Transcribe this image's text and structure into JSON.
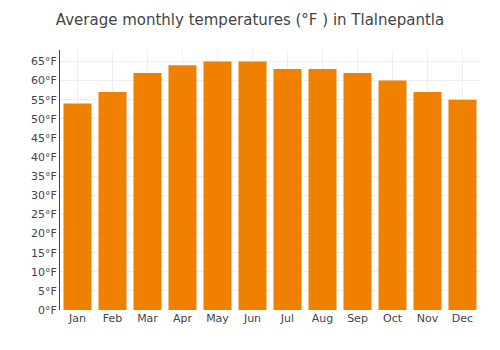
{
  "chart_data": {
    "type": "bar",
    "title": "Average monthly temperatures (°F ) in Tlalnepantla",
    "categories": [
      "Jan",
      "Feb",
      "Mar",
      "Apr",
      "May",
      "Jun",
      "Jul",
      "Aug",
      "Sep",
      "Oct",
      "Nov",
      "Dec"
    ],
    "values": [
      54,
      57,
      62,
      64,
      65,
      65,
      63,
      63,
      62,
      60,
      57,
      55
    ],
    "color": "#F08000",
    "ylim": [
      0,
      68
    ],
    "yticks": [
      {
        "value": 0,
        "label": "0°F"
      },
      {
        "value": 5,
        "label": "5°F"
      },
      {
        "value": 10,
        "label": "10°F"
      },
      {
        "value": 15,
        "label": "15°F"
      },
      {
        "value": 20,
        "label": "20°F"
      },
      {
        "value": 25,
        "label": "25°F"
      },
      {
        "value": 30,
        "label": "30°F"
      },
      {
        "value": 35,
        "label": "35°F"
      },
      {
        "value": 40,
        "label": "40°F"
      },
      {
        "value": 45,
        "label": "45°F"
      },
      {
        "value": 50,
        "label": "50°F"
      },
      {
        "value": 55,
        "label": "55°F"
      },
      {
        "value": 60,
        "label": "60°F"
      },
      {
        "value": 65,
        "label": "65°F"
      }
    ],
    "grid": true
  }
}
